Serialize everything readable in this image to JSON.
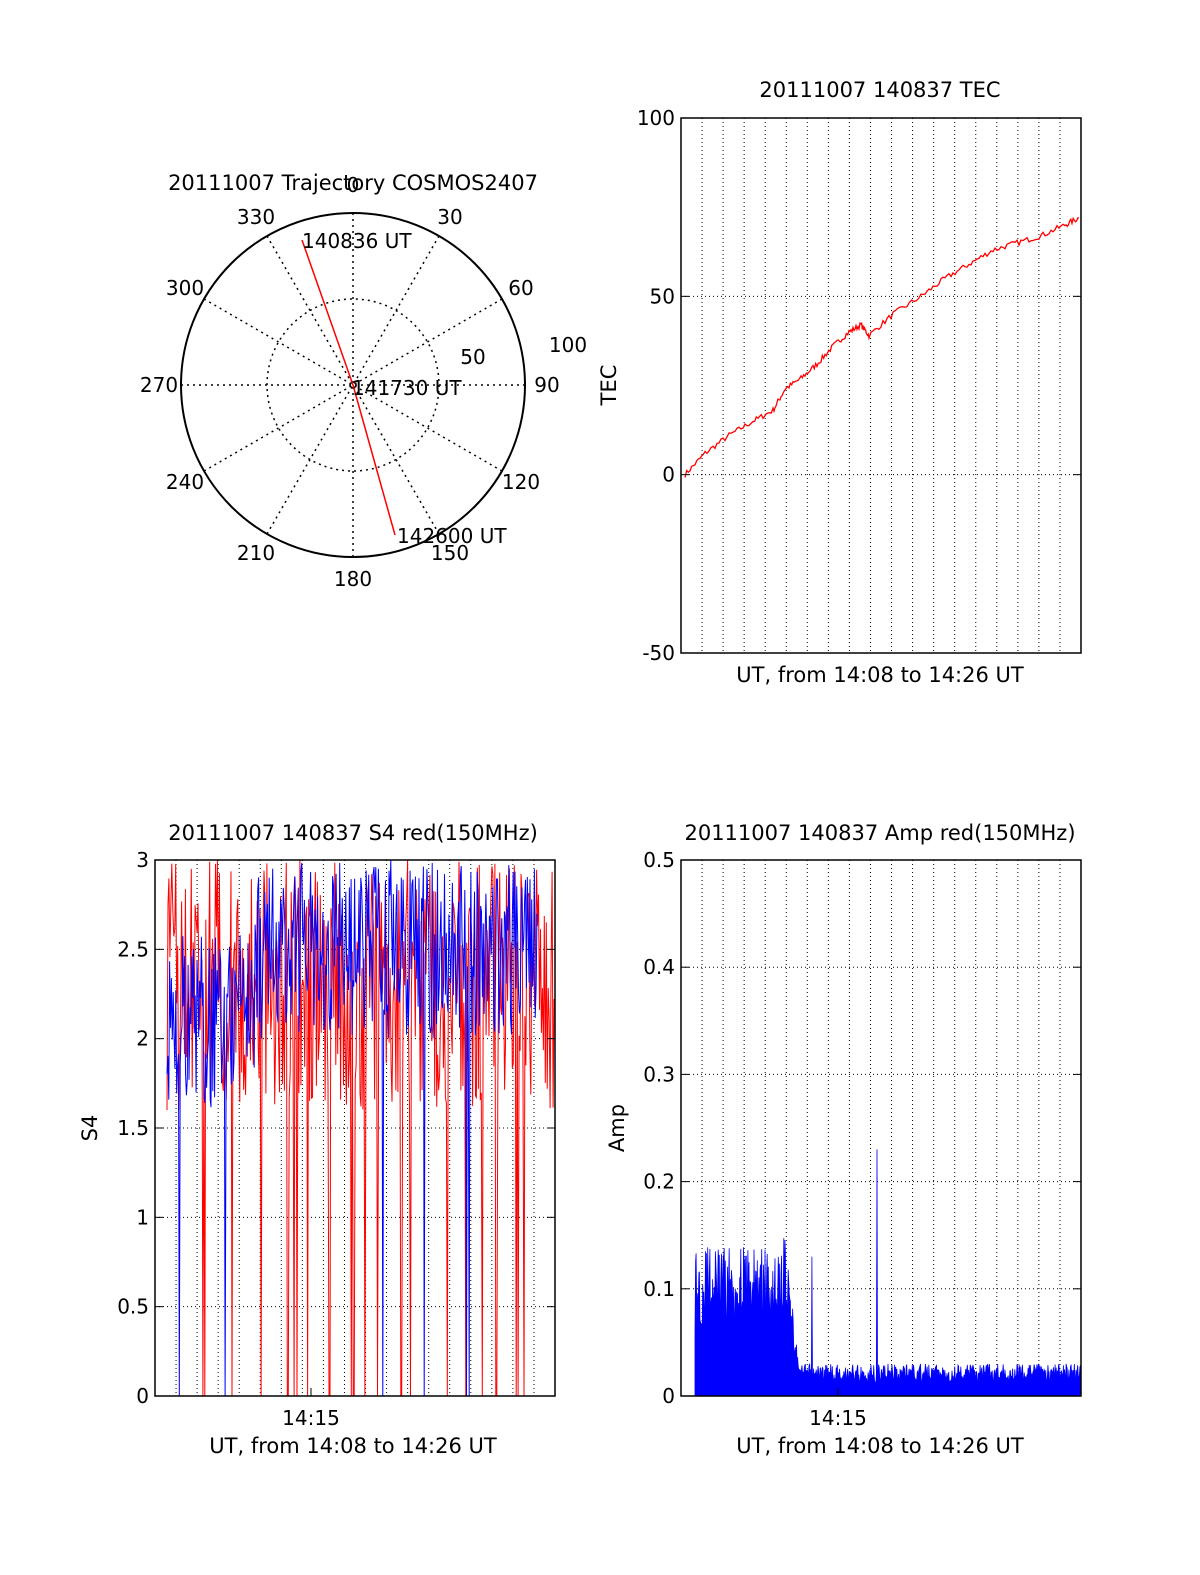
{
  "colors": {
    "red": "#ff0000",
    "blue": "#0000ff",
    "axis": "#000000",
    "grid": "#000000",
    "background": "#ffffff"
  },
  "chart_data": [
    {
      "type": "polar",
      "title": "20111007 Trajectory COSMOS2407",
      "angle_labels": [
        "0",
        "30",
        "60",
        "90",
        "120",
        "150",
        "180",
        "210",
        "240",
        "270",
        "300",
        "330"
      ],
      "radial_labels": [
        "50",
        "100"
      ],
      "rlim": [
        0,
        100
      ],
      "grid": true,
      "series": [
        {
          "color": "red",
          "points": [
            {
              "azimuth": 337,
              "elev_r": 85
            },
            {
              "azimuth": 157,
              "elev_r": 4
            },
            {
              "azimuth": 157,
              "elev_r": 90
            }
          ]
        }
      ],
      "annotations": [
        {
          "text": "140836 UT",
          "point_index": 0
        },
        {
          "text": "141730 UT",
          "point_index": 1
        },
        {
          "text": "142600 UT",
          "point_index": 2
        }
      ]
    },
    {
      "type": "line",
      "title": "20111007 140837 TEC",
      "xlabel": "UT, from 14:08 to 14:26 UT",
      "ylabel": "TEC",
      "xlim": [
        0,
        1000
      ],
      "ylim": [
        -50,
        100
      ],
      "yticks": [
        "-50",
        "0",
        "50",
        "100"
      ],
      "grid": true,
      "series": [
        {
          "color": "red",
          "x": [
            10,
            60,
            120,
            180,
            230,
            260,
            300,
            340,
            380,
            420,
            450,
            470,
            530,
            600,
            660,
            720,
            780,
            840,
            900,
            960,
            995
          ],
          "y": [
            0,
            6,
            11,
            15,
            18,
            24,
            27,
            31,
            36,
            40,
            42,
            39,
            45,
            50,
            55,
            59,
            63,
            65,
            67,
            70,
            72
          ]
        }
      ]
    },
    {
      "type": "line",
      "title": "20111007 140837 S4 red(150MHz)",
      "xlabel": "UT, from 14:08 to 14:26 UT",
      "ylabel": "S4",
      "xticks": [
        "14:15"
      ],
      "ylim": [
        0,
        3
      ],
      "yticks": [
        "0",
        "0.5",
        "1",
        "1.5",
        "2",
        "2.5",
        "3"
      ],
      "grid": true,
      "series": [
        {
          "color": "red",
          "note_range": [
            1.5,
            3.0
          ],
          "drops_to": 0
        },
        {
          "color": "blue",
          "note_range": [
            1.6,
            3.0
          ],
          "drops_to": 0
        }
      ]
    },
    {
      "type": "line",
      "title": "20111007 140837 Amp red(150MHz)",
      "xlabel": "UT, from 14:08 to 14:26 UT",
      "ylabel": "Amp",
      "xticks": [
        "14:15"
      ],
      "ylim": [
        0,
        0.5
      ],
      "yticks": [
        "0",
        "0.1",
        "0.2",
        "0.3",
        "0.4",
        "0.5"
      ],
      "grid": true,
      "series": [
        {
          "color": "blue",
          "early_level": 0.1,
          "late_level": 0.02,
          "peak": 0.23
        }
      ]
    }
  ]
}
